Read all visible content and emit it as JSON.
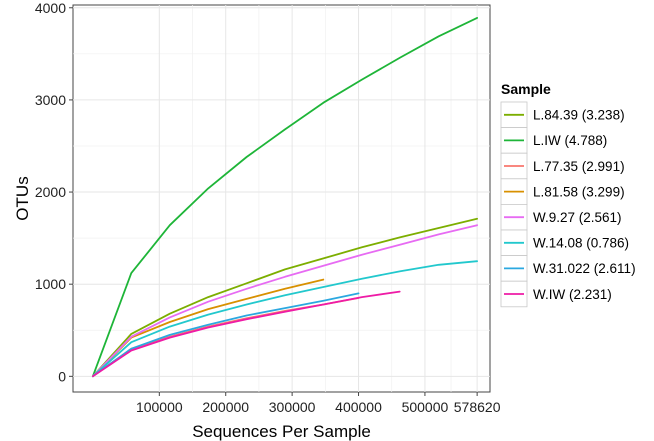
{
  "chart_data": {
    "type": "line",
    "title": "",
    "xlabel": "Sequences Per Sample",
    "ylabel": "OTUs",
    "xlim": [
      -30000,
      598000
    ],
    "ylim": [
      -170,
      4030
    ],
    "x_ticks": [
      100000,
      200000,
      300000,
      400000,
      500000,
      578620
    ],
    "x_tick_labels": [
      "100000",
      "200000",
      "300000",
      "400000",
      "500000",
      "578620"
    ],
    "y_ticks": [
      0,
      1000,
      2000,
      3000,
      4000
    ],
    "y_tick_labels": [
      "0",
      "1000",
      "2000",
      "3000",
      "4000"
    ],
    "grid": true,
    "legend_title": "Sample",
    "legend_position": "right",
    "series": [
      {
        "name": "L.84.39 (3.238)",
        "color": "#7cae00",
        "x": [
          1,
          57862,
          115724,
          173586,
          231448,
          289310,
          347172,
          405034,
          462896,
          520758,
          578620
        ],
        "y": [
          1,
          460,
          680,
          860,
          1010,
          1160,
          1280,
          1400,
          1510,
          1610,
          1710
        ]
      },
      {
        "name": "L.IW (4.788)",
        "color": "#1eb538",
        "x": [
          1,
          57862,
          115724,
          173586,
          231448,
          289310,
          347172,
          405034,
          462896,
          520758,
          578620
        ],
        "y": [
          1,
          1120,
          1640,
          2040,
          2380,
          2680,
          2970,
          3220,
          3460,
          3690,
          3890
        ]
      },
      {
        "name": "L.77.35 (2.991)",
        "color": "#f8766d",
        "x": [
          1,
          57862,
          115724,
          173586,
          231448,
          289310,
          347172,
          400000
        ],
        "y": [
          1,
          300,
          430,
          540,
          630,
          710,
          780,
          850
        ]
      },
      {
        "name": "L.81.58 (3.299)",
        "color": "#d89000",
        "x": [
          1,
          57862,
          115724,
          173586,
          231448,
          289310,
          347000
        ],
        "y": [
          1,
          420,
          590,
          730,
          840,
          950,
          1050
        ]
      },
      {
        "name": "W.9.27 (2.561)",
        "color": "#e76bf3",
        "x": [
          1,
          57862,
          115724,
          173586,
          231448,
          289310,
          347172,
          405034,
          462896,
          520758,
          578620
        ],
        "y": [
          1,
          430,
          640,
          810,
          950,
          1080,
          1200,
          1320,
          1430,
          1540,
          1640
        ]
      },
      {
        "name": "W.14.08 (0.786)",
        "color": "#22c8cd",
        "x": [
          1,
          57862,
          115724,
          173586,
          231448,
          289310,
          347172,
          405034,
          462896,
          520758,
          578620
        ],
        "y": [
          1,
          370,
          540,
          670,
          780,
          880,
          970,
          1060,
          1140,
          1210,
          1250
        ]
      },
      {
        "name": "W.31.022 (2.611)",
        "color": "#2ba8e0",
        "x": [
          1,
          57862,
          115724,
          173586,
          231448,
          289310,
          347172,
          400000
        ],
        "y": [
          1,
          300,
          450,
          560,
          660,
          740,
          820,
          900
        ]
      },
      {
        "name": "W.IW (2.231)",
        "color": "#ee1ba6",
        "x": [
          1,
          57862,
          115724,
          173586,
          231448,
          289310,
          347172,
          405034,
          462000
        ],
        "y": [
          1,
          280,
          420,
          530,
          620,
          700,
          780,
          860,
          920
        ]
      }
    ]
  }
}
